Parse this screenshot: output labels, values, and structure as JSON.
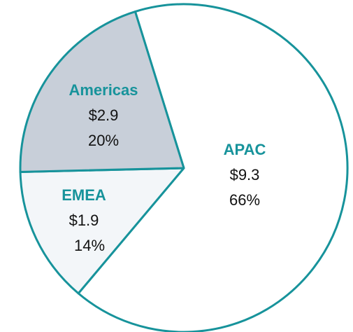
{
  "chart_data": {
    "type": "pie",
    "categories": [
      "APAC",
      "EMEA",
      "Americas"
    ],
    "values": [
      9.3,
      1.9,
      2.9
    ],
    "value_labels": [
      "$9.3",
      "$1.9",
      "$2.9"
    ],
    "percents": [
      66,
      14,
      20
    ],
    "percent_labels": [
      "66%",
      "14%",
      "20%"
    ],
    "colors": [
      "#ffffff",
      "#f3f6f9",
      "#c8cfd9"
    ],
    "edge_color": "#17939b"
  }
}
